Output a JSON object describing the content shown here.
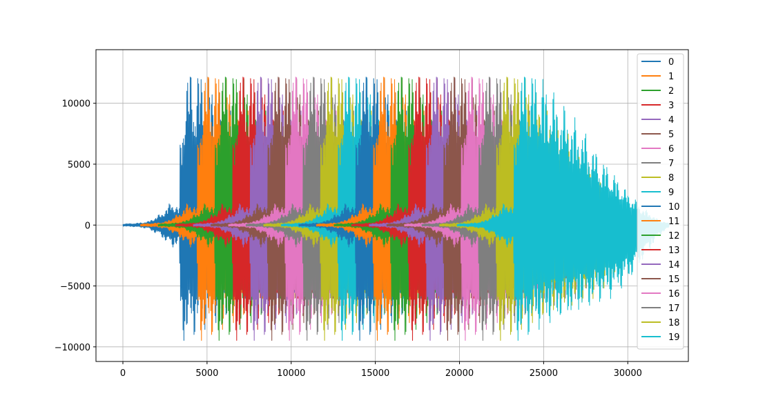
{
  "chart_data": {
    "type": "line",
    "title": "",
    "xlabel": "",
    "ylabel": "",
    "xlim": [
      -1600,
      33600
    ],
    "ylim": [
      -11200,
      14400
    ],
    "xticks": [
      0,
      5000,
      10000,
      15000,
      20000,
      25000,
      30000
    ],
    "yticks": [
      -10000,
      -5000,
      0,
      5000,
      10000
    ],
    "xtick_labels": [
      "0",
      "5000",
      "10000",
      "15000",
      "20000",
      "25000",
      "30000"
    ],
    "ytick_labels": [
      "−10000",
      "−5000",
      "0",
      "5000",
      "10000"
    ],
    "grid": true,
    "legend_position": "upper-right",
    "colors": [
      "#1f77b4",
      "#ff7f0e",
      "#2ca02c",
      "#d62728",
      "#9467bd",
      "#8c564b",
      "#e377c2",
      "#7f7f7f",
      "#bcbd22",
      "#17becf"
    ],
    "series": [
      {
        "name": "0",
        "shift": 0,
        "color": "#1f77b4"
      },
      {
        "name": "1",
        "shift": 1045,
        "color": "#ff7f0e"
      },
      {
        "name": "2",
        "shift": 2090,
        "color": "#2ca02c"
      },
      {
        "name": "3",
        "shift": 3135,
        "color": "#d62728"
      },
      {
        "name": "4",
        "shift": 4180,
        "color": "#9467bd"
      },
      {
        "name": "5",
        "shift": 5225,
        "color": "#8c564b"
      },
      {
        "name": "6",
        "shift": 6270,
        "color": "#e377c2"
      },
      {
        "name": "7",
        "shift": 7315,
        "color": "#7f7f7f"
      },
      {
        "name": "8",
        "shift": 8360,
        "color": "#bcbd22"
      },
      {
        "name": "9",
        "shift": 9405,
        "color": "#17becf"
      },
      {
        "name": "10",
        "shift": 10450,
        "color": "#1f77b4"
      },
      {
        "name": "11",
        "shift": 11495,
        "color": "#ff7f0e"
      },
      {
        "name": "12",
        "shift": 12540,
        "color": "#2ca02c"
      },
      {
        "name": "13",
        "shift": 13585,
        "color": "#d62728"
      },
      {
        "name": "14",
        "shift": 14630,
        "color": "#9467bd"
      },
      {
        "name": "15",
        "shift": 15675,
        "color": "#8c564b"
      },
      {
        "name": "16",
        "shift": 16720,
        "color": "#e377c2"
      },
      {
        "name": "17",
        "shift": 17765,
        "color": "#7f7f7f"
      },
      {
        "name": "18",
        "shift": 18810,
        "color": "#bcbd22"
      },
      {
        "name": "19",
        "shift": 19855,
        "color": "#17becf"
      }
    ],
    "waveform": {
      "length": 12600,
      "envelope_x": [
        0,
        800,
        1500,
        2300,
        2900,
        3350,
        3400,
        3700,
        4000,
        4400,
        5000,
        5800,
        6600,
        7500,
        8300,
        9200,
        10000,
        11000,
        12000,
        12600
      ],
      "envelope_top": [
        100,
        150,
        300,
        1000,
        2000,
        1500,
        6700,
        12800,
        13000,
        13000,
        12500,
        11000,
        9500,
        8000,
        6000,
        4500,
        3000,
        1500,
        400,
        150
      ],
      "envelope_bottom": [
        -100,
        -150,
        -300,
        -1000,
        -1900,
        -1600,
        -8500,
        -10000,
        -9500,
        -9000,
        -8500,
        -8000,
        -7500,
        -7000,
        -6500,
        -6000,
        -5000,
        -3000,
        -900,
        -200
      ]
    }
  }
}
